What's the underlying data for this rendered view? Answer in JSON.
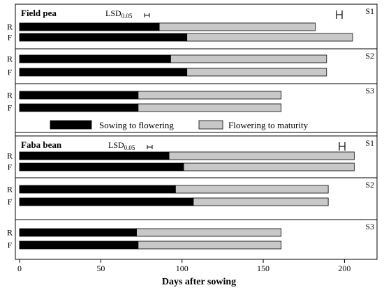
{
  "chart_data": [
    {
      "type": "bar",
      "orientation": "horizontal",
      "stacked": true,
      "title": "Field pea",
      "lsd_label": "LSD",
      "lsd_subscript": "0.05",
      "lsd_value": 3,
      "groups": [
        {
          "name": "S1",
          "rows": [
            {
              "label": "R",
              "sowing_to_flowering": 86,
              "flowering_to_maturity": 96
            },
            {
              "label": "F",
              "sowing_to_flowering": 103,
              "flowering_to_maturity": 102
            }
          ]
        },
        {
          "name": "S2",
          "rows": [
            {
              "label": "R",
              "sowing_to_flowering": 93,
              "flowering_to_maturity": 96
            },
            {
              "label": "F",
              "sowing_to_flowering": 103,
              "flowering_to_maturity": 86
            }
          ]
        },
        {
          "name": "S3",
          "rows": [
            {
              "label": "R",
              "sowing_to_flowering": 73,
              "flowering_to_maturity": 88
            },
            {
              "label": "F",
              "sowing_to_flowering": 73,
              "flowering_to_maturity": 88
            }
          ]
        }
      ]
    },
    {
      "type": "bar",
      "orientation": "horizontal",
      "stacked": true,
      "title": "Faba bean",
      "lsd_label": "LSD",
      "lsd_subscript": "0.05",
      "lsd_value": 3,
      "groups": [
        {
          "name": "S1",
          "rows": [
            {
              "label": "R",
              "sowing_to_flowering": 92,
              "flowering_to_maturity": 114
            },
            {
              "label": "F",
              "sowing_to_flowering": 101,
              "flowering_to_maturity": 105
            }
          ]
        },
        {
          "name": "S2",
          "rows": [
            {
              "label": "R",
              "sowing_to_flowering": 96,
              "flowering_to_maturity": 94
            },
            {
              "label": "F",
              "sowing_to_flowering": 107,
              "flowering_to_maturity": 83
            }
          ]
        },
        {
          "name": "S3",
          "rows": [
            {
              "label": "R",
              "sowing_to_flowering": 72,
              "flowering_to_maturity": 89
            },
            {
              "label": "F",
              "sowing_to_flowering": 73,
              "flowering_to_maturity": 88
            }
          ]
        }
      ]
    }
  ],
  "legend": {
    "position": "between-panels",
    "items": [
      {
        "label": "Sowing to flowering",
        "color": "#000000"
      },
      {
        "label": "Flowering to maturity",
        "color": "#c8c8c8"
      }
    ]
  },
  "x_axis": {
    "label": "Days after sowing",
    "range": [
      0,
      220
    ],
    "ticks": [
      0,
      50,
      100,
      150,
      200
    ],
    "tick_labels": [
      "0",
      "50",
      "100",
      "150",
      "200"
    ]
  },
  "colors": {
    "sowing_to_flowering": "#000000",
    "flowering_to_maturity": "#c8c8c8",
    "stroke": "#000000"
  }
}
